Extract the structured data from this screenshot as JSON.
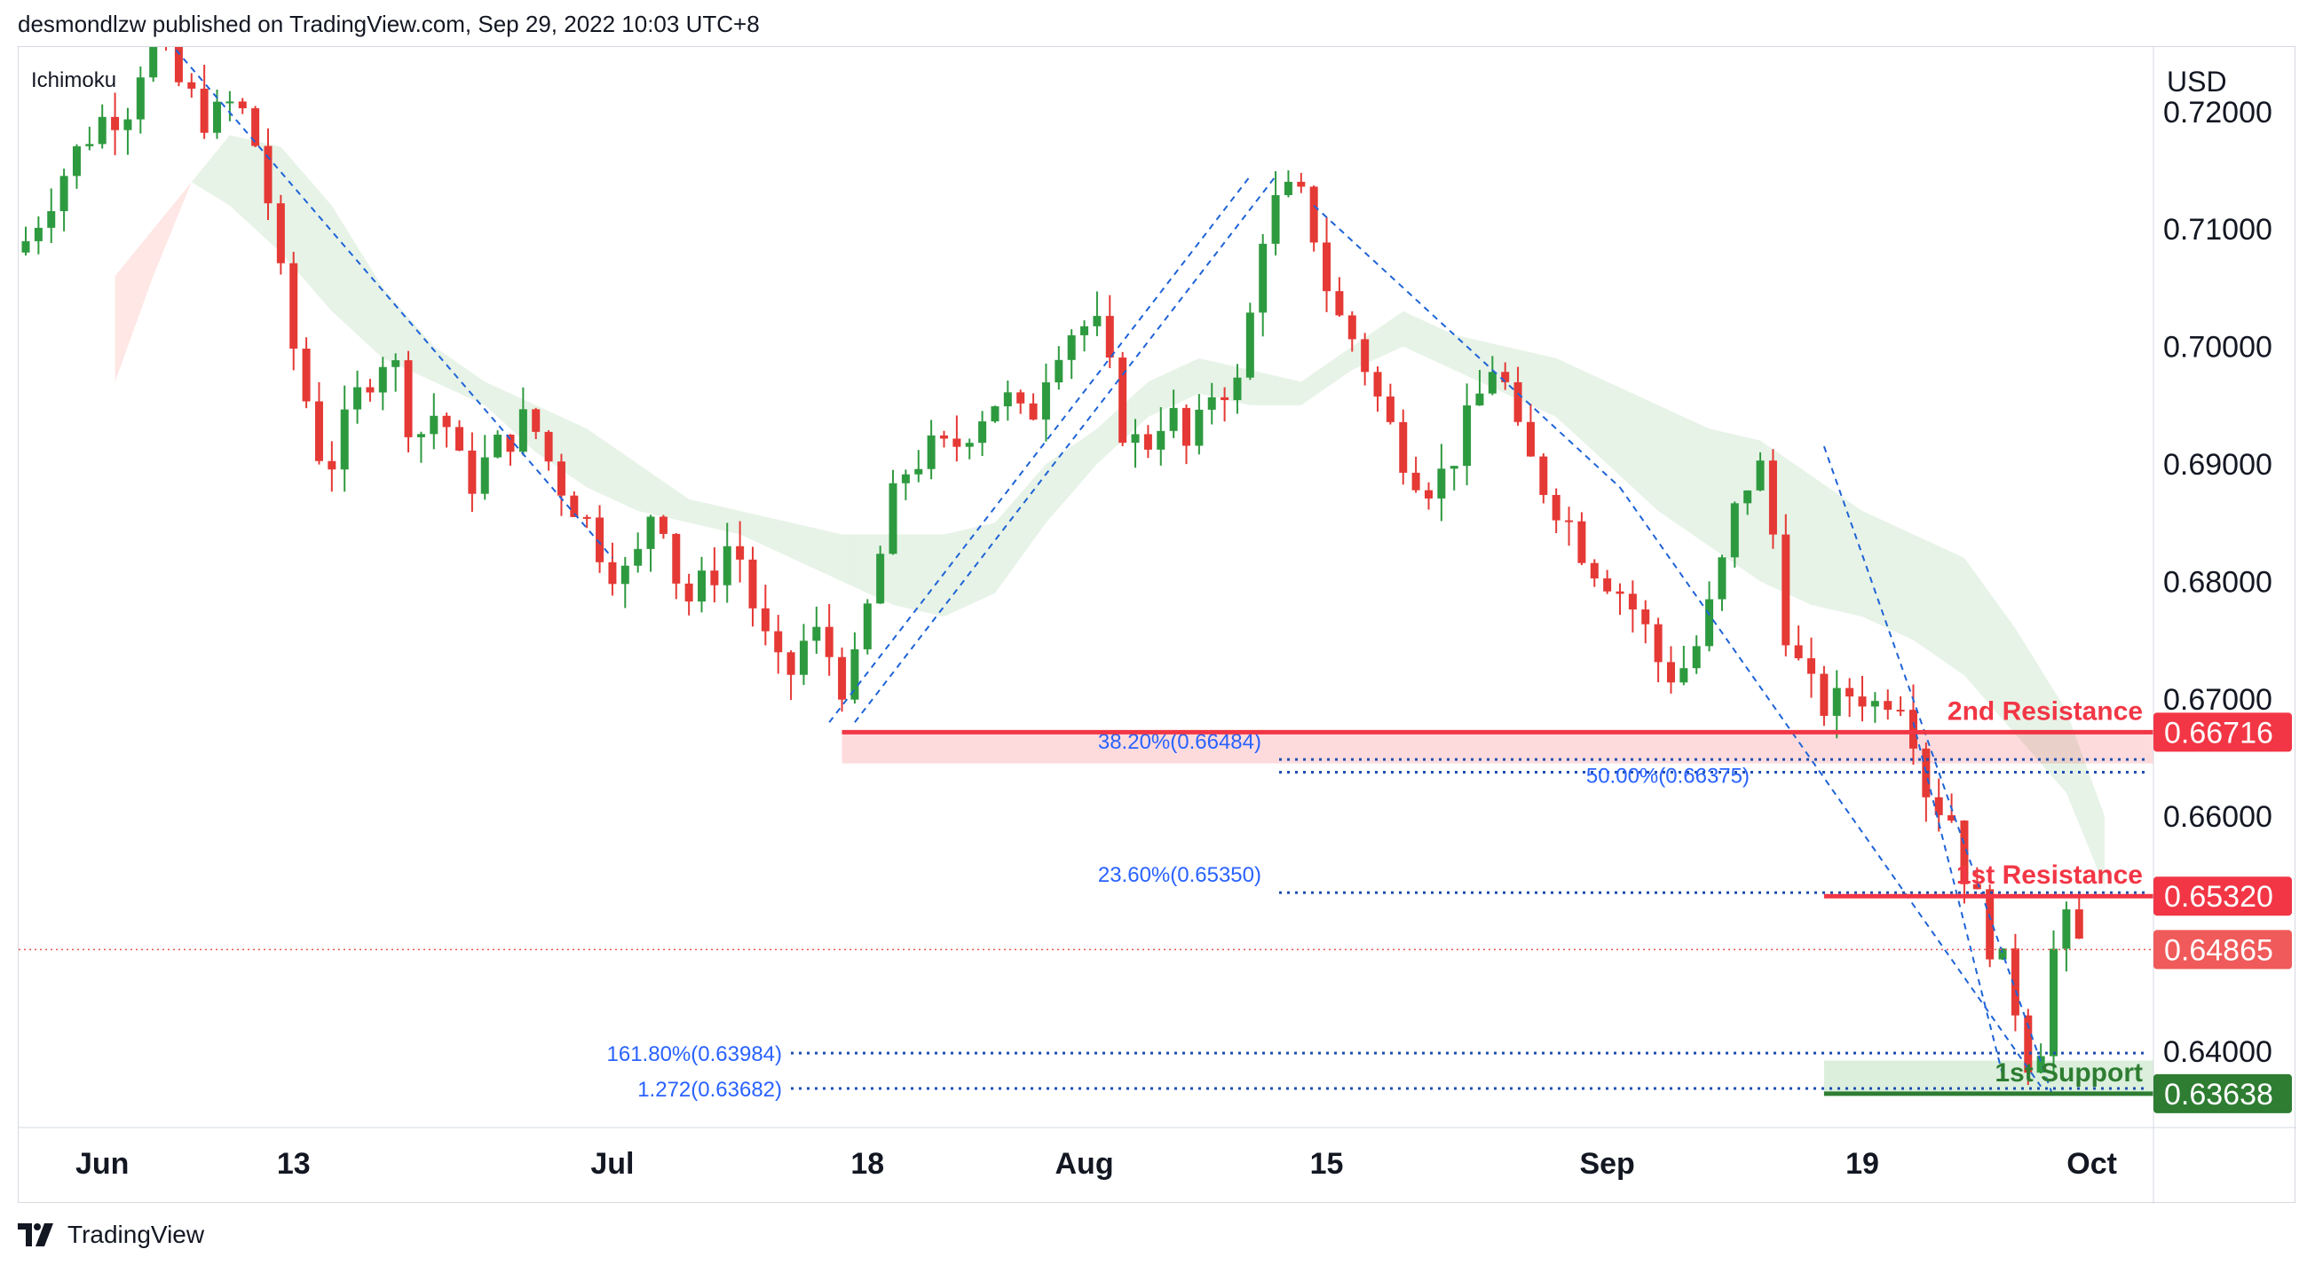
{
  "header": {
    "publisher": "desmondlzw published on TradingView.com, Sep 29, 2022 10:03 UTC+8"
  },
  "footer": {
    "brand": "TradingView",
    "logo_icon": "tradingview-logo-icon"
  },
  "chart_data": {
    "type": "candlestick",
    "indicator_label": "Ichimoku",
    "currency": "USD",
    "y_ticks": [
      "0.72000",
      "0.71000",
      "0.70000",
      "0.69000",
      "0.68000",
      "0.67000",
      "0.66000",
      "0.64000"
    ],
    "y_tick_values": [
      0.72,
      0.71,
      0.7,
      0.69,
      0.68,
      0.67,
      0.66,
      0.64
    ],
    "ylim": [
      0.6335,
      0.7255
    ],
    "x_ticks": [
      {
        "label": "Jun",
        "idx": 6
      },
      {
        "label": "13",
        "idx": 21
      },
      {
        "label": "Jul",
        "idx": 46
      },
      {
        "label": "18",
        "idx": 66
      },
      {
        "label": "Aug",
        "idx": 83
      },
      {
        "label": "15",
        "idx": 102
      },
      {
        "label": "Sep",
        "idx": 124
      },
      {
        "label": "19",
        "idx": 144
      },
      {
        "label": "Oct",
        "idx": 162
      }
    ],
    "close_path": [
      [
        0,
        0.708
      ],
      [
        3,
        0.714
      ],
      [
        6,
        0.719
      ],
      [
        9,
        0.721
      ],
      [
        10,
        0.727
      ],
      [
        12,
        0.723
      ],
      [
        15,
        0.719
      ],
      [
        17,
        0.721
      ],
      [
        19,
        0.716
      ],
      [
        21,
        0.702
      ],
      [
        24,
        0.689
      ],
      [
        27,
        0.697
      ],
      [
        29,
        0.7
      ],
      [
        31,
        0.692
      ],
      [
        33,
        0.695
      ],
      [
        35,
        0.688
      ],
      [
        38,
        0.692
      ],
      [
        40,
        0.694
      ],
      [
        42,
        0.689
      ],
      [
        44,
        0.686
      ],
      [
        46,
        0.682
      ],
      [
        48,
        0.68
      ],
      [
        50,
        0.688
      ],
      [
        52,
        0.678
      ],
      [
        54,
        0.68
      ],
      [
        56,
        0.684
      ],
      [
        58,
        0.676
      ],
      [
        60,
        0.671
      ],
      [
        62,
        0.676
      ],
      [
        64,
        0.673
      ],
      [
        65,
        0.67
      ],
      [
        67,
        0.68
      ],
      [
        69,
        0.689
      ],
      [
        71,
        0.691
      ],
      [
        73,
        0.691
      ],
      [
        75,
        0.694
      ],
      [
        77,
        0.696
      ],
      [
        79,
        0.693
      ],
      [
        81,
        0.7
      ],
      [
        83,
        0.702
      ],
      [
        85,
        0.701
      ],
      [
        86,
        0.694
      ],
      [
        88,
        0.691
      ],
      [
        90,
        0.695
      ],
      [
        92,
        0.69
      ],
      [
        93,
        0.696
      ],
      [
        95,
        0.697
      ],
      [
        96,
        0.696
      ],
      [
        97,
        0.709
      ],
      [
        99,
        0.713
      ],
      [
        101,
        0.712
      ],
      [
        103,
        0.703
      ],
      [
        105,
        0.7
      ],
      [
        107,
        0.694
      ],
      [
        109,
        0.69
      ],
      [
        111,
        0.688
      ],
      [
        113,
        0.692
      ],
      [
        115,
        0.697
      ],
      [
        116,
        0.7
      ],
      [
        117,
        0.693
      ],
      [
        119,
        0.689
      ],
      [
        121,
        0.686
      ],
      [
        123,
        0.682
      ],
      [
        125,
        0.68
      ],
      [
        127,
        0.677
      ],
      [
        129,
        0.672
      ],
      [
        131,
        0.673
      ],
      [
        133,
        0.679
      ],
      [
        135,
        0.688
      ],
      [
        137,
        0.69
      ],
      [
        138,
        0.678
      ],
      [
        140,
        0.671
      ],
      [
        142,
        0.669
      ],
      [
        144,
        0.671
      ],
      [
        146,
        0.669
      ],
      [
        147,
        0.672
      ],
      [
        149,
        0.666
      ],
      [
        150,
        0.659
      ],
      [
        151,
        0.663
      ],
      [
        152,
        0.657
      ],
      [
        153,
        0.654
      ],
      [
        154,
        0.651
      ],
      [
        155,
        0.648
      ],
      [
        156,
        0.646
      ],
      [
        157,
        0.642
      ],
      [
        158,
        0.637
      ],
      [
        159,
        0.645
      ],
      [
        160,
        0.652
      ],
      [
        161,
        0.649
      ]
    ],
    "cloud_upper": [
      [
        7,
        0.697
      ],
      [
        10,
        0.706
      ],
      [
        13,
        0.714
      ],
      [
        16,
        0.718
      ],
      [
        20,
        0.717
      ],
      [
        24,
        0.712
      ],
      [
        28,
        0.705
      ],
      [
        32,
        0.7
      ],
      [
        36,
        0.697
      ],
      [
        40,
        0.695
      ],
      [
        44,
        0.693
      ],
      [
        48,
        0.69
      ],
      [
        52,
        0.687
      ],
      [
        56,
        0.686
      ],
      [
        60,
        0.685
      ],
      [
        64,
        0.684
      ],
      [
        68,
        0.684
      ],
      [
        72,
        0.684
      ],
      [
        76,
        0.685
      ],
      [
        80,
        0.69
      ],
      [
        84,
        0.693
      ],
      [
        88,
        0.697
      ],
      [
        92,
        0.699
      ],
      [
        96,
        0.698
      ],
      [
        100,
        0.697
      ],
      [
        104,
        0.7
      ],
      [
        108,
        0.703
      ],
      [
        112,
        0.701
      ],
      [
        116,
        0.7
      ],
      [
        120,
        0.699
      ],
      [
        124,
        0.697
      ],
      [
        128,
        0.695
      ],
      [
        132,
        0.693
      ],
      [
        136,
        0.692
      ],
      [
        140,
        0.689
      ],
      [
        144,
        0.686
      ],
      [
        148,
        0.684
      ],
      [
        152,
        0.682
      ],
      [
        156,
        0.676
      ],
      [
        160,
        0.669
      ],
      [
        163,
        0.66
      ]
    ],
    "cloud_lower": [
      [
        7,
        0.706
      ],
      [
        10,
        0.71
      ],
      [
        13,
        0.714
      ],
      [
        16,
        0.712
      ],
      [
        20,
        0.708
      ],
      [
        24,
        0.703
      ],
      [
        28,
        0.699
      ],
      [
        32,
        0.697
      ],
      [
        36,
        0.695
      ],
      [
        40,
        0.691
      ],
      [
        44,
        0.688
      ],
      [
        48,
        0.686
      ],
      [
        52,
        0.685
      ],
      [
        56,
        0.684
      ],
      [
        60,
        0.682
      ],
      [
        64,
        0.68
      ],
      [
        68,
        0.678
      ],
      [
        72,
        0.677
      ],
      [
        76,
        0.679
      ],
      [
        80,
        0.685
      ],
      [
        84,
        0.69
      ],
      [
        88,
        0.694
      ],
      [
        92,
        0.696
      ],
      [
        96,
        0.695
      ],
      [
        100,
        0.695
      ],
      [
        104,
        0.698
      ],
      [
        108,
        0.7
      ],
      [
        112,
        0.698
      ],
      [
        116,
        0.696
      ],
      [
        120,
        0.694
      ],
      [
        124,
        0.69
      ],
      [
        128,
        0.686
      ],
      [
        132,
        0.683
      ],
      [
        136,
        0.68
      ],
      [
        140,
        0.678
      ],
      [
        144,
        0.677
      ],
      [
        148,
        0.675
      ],
      [
        152,
        0.672
      ],
      [
        156,
        0.667
      ],
      [
        160,
        0.662
      ],
      [
        163,
        0.654
      ]
    ],
    "trendlines": [
      {
        "from": [
          10,
          0.7275
        ],
        "to": [
          46,
          0.682
        ]
      },
      {
        "from": [
          65,
          0.668
        ],
        "to": [
          98,
          0.7145
        ]
      },
      {
        "from": [
          63,
          0.668
        ],
        "to": [
          96,
          0.7145
        ]
      },
      {
        "from": [
          101,
          0.712
        ],
        "to": [
          125,
          0.688
        ]
      },
      {
        "from": [
          125,
          0.688
        ],
        "to": [
          158,
          0.637
        ]
      },
      {
        "from": [
          141,
          0.6915
        ],
        "to": [
          159,
          0.636
        ]
      },
      {
        "from": [
          155,
          0.638
        ],
        "to": [
          148,
          0.668
        ]
      }
    ],
    "levels": [
      {
        "name": "2nd Resistance",
        "value": 0.66716,
        "label": "0.66716",
        "color": "#f23645",
        "zone_low": 0.6645,
        "zone_from": 64
      },
      {
        "name": "1st Resistance",
        "value": 0.6532,
        "label": "0.65320",
        "color": "#f23645",
        "zone_from": 141
      },
      {
        "name": "1st Support",
        "value": 0.63638,
        "label": "0.63638",
        "color": "#2e7d32",
        "zone_high": 0.6392,
        "zone_from": 141
      }
    ],
    "current_price": {
      "value": 0.64865,
      "label": "0.64865"
    },
    "fib_levels": [
      {
        "label": "38.20%(0.66484)",
        "value": 0.66484,
        "from": 101
      },
      {
        "label": "50.00%(0.66375)",
        "value": 0.66375,
        "from": 139
      },
      {
        "label": "23.60%(0.65350)",
        "value": 0.6535,
        "from": 101
      },
      {
        "label": "161.80%(0.63984)",
        "value": 0.63984,
        "from": 61
      },
      {
        "label": "1.272(0.63682)",
        "value": 0.63682,
        "from": 63
      }
    ]
  }
}
